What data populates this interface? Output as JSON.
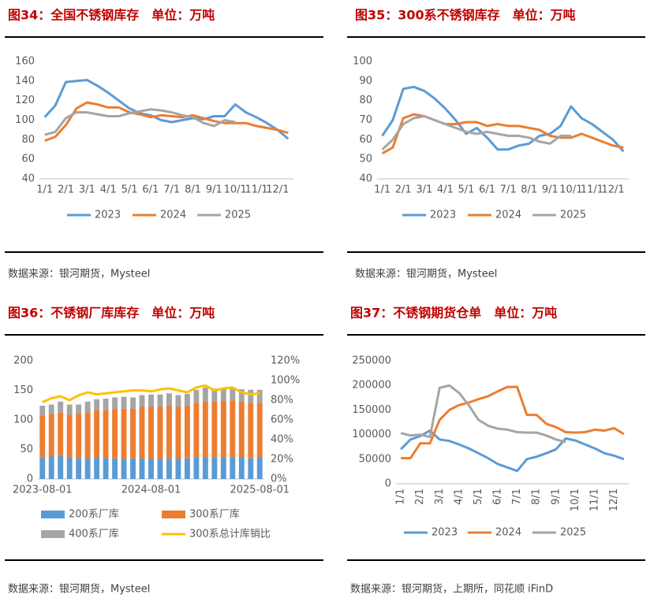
{
  "chart_data": [
    {
      "type": "line",
      "title": "图34：全国不锈钢库存　单位：万吨",
      "source": "数据来源：银河期货，Mysteel",
      "categories": [
        "1/1",
        null,
        "2/1",
        null,
        "3/1",
        null,
        "4/1",
        null,
        "5/1",
        null,
        "6/1",
        null,
        "7/1",
        null,
        "8/1",
        null,
        "9/1",
        null,
        "10/1",
        null,
        "11/1",
        null,
        "12/1",
        null
      ],
      "series": [
        {
          "name": "2023",
          "color": "#5b9bd5",
          "values": [
            103,
            115,
            139,
            140,
            141,
            135,
            128,
            120,
            112,
            107,
            105,
            100,
            98,
            100,
            102,
            101,
            104,
            104,
            116,
            108,
            103,
            97,
            90,
            81
          ]
        },
        {
          "name": "2024",
          "color": "#ed7d31",
          "values": [
            79,
            83,
            95,
            112,
            118,
            116,
            113,
            113,
            108,
            106,
            103,
            105,
            104,
            103,
            105,
            102,
            99,
            97,
            97,
            97,
            94,
            92,
            90,
            87
          ]
        },
        {
          "name": "2025",
          "color": "#a5a5a5",
          "values": [
            85,
            88,
            102,
            108,
            108,
            106,
            104,
            104,
            107,
            109,
            111,
            110,
            108,
            105,
            103,
            97,
            94,
            100,
            98,
            null,
            null,
            null,
            null,
            null
          ]
        }
      ],
      "ylim": [
        40,
        160
      ],
      "yticks": [
        40,
        60,
        80,
        100,
        120,
        140,
        160
      ],
      "legend": "bottom"
    },
    {
      "type": "line",
      "title": "图35：300系不锈钢库存　单位：万吨",
      "source": "数据来源：银河期货，Mysteel",
      "categories": [
        "1/1",
        null,
        "2/1",
        null,
        "3/1",
        null,
        "4/1",
        null,
        "5/1",
        null,
        "6/1",
        null,
        "7/1",
        null,
        "8/1",
        null,
        "9/1",
        null,
        "10/1",
        null,
        "11/1",
        null,
        "12/1",
        null
      ],
      "series": [
        {
          "name": "2023",
          "color": "#5b9bd5",
          "values": [
            62,
            70,
            86,
            87,
            85,
            81,
            76,
            70,
            63,
            66,
            61,
            55,
            55,
            57,
            58,
            62,
            63,
            67,
            77,
            71,
            68,
            64,
            60,
            54
          ]
        },
        {
          "name": "2024",
          "color": "#ed7d31",
          "values": [
            53,
            56,
            71,
            73,
            72,
            70,
            68,
            68,
            69,
            69,
            67,
            68,
            67,
            67,
            66,
            65,
            62,
            61,
            61,
            63,
            61,
            59,
            57,
            56
          ]
        },
        {
          "name": "2025",
          "color": "#a5a5a5",
          "values": [
            55,
            60,
            68,
            71,
            72,
            70,
            68,
            66,
            64,
            63,
            64,
            63,
            62,
            62,
            61,
            59,
            58,
            62,
            62,
            null,
            null,
            null,
            null,
            null
          ]
        }
      ],
      "ylim": [
        40,
        100
      ],
      "yticks": [
        40,
        50,
        60,
        70,
        80,
        90,
        100
      ],
      "legend": "bottom"
    },
    {
      "type": "bar",
      "title": "图36：不锈钢厂库库存　单位：万吨",
      "source": "数据来源：银河期货，Mysteel",
      "stacked": true,
      "categories": [
        "2023-08-01",
        null,
        null,
        null,
        null,
        null,
        null,
        null,
        null,
        null,
        null,
        null,
        "2024-08-01",
        null,
        null,
        null,
        null,
        null,
        null,
        null,
        null,
        null,
        null,
        null,
        "2025-08-01"
      ],
      "series": [
        {
          "name": "200系厂库",
          "color": "#5b9bd5",
          "values": [
            37,
            38,
            39,
            37,
            35,
            35,
            36,
            35,
            35,
            34,
            35,
            35,
            34,
            34,
            35,
            34,
            35,
            37,
            37,
            36,
            36,
            37,
            36,
            35,
            36
          ]
        },
        {
          "name": "300系厂库",
          "color": "#ed7d31",
          "values": [
            70,
            72,
            74,
            72,
            75,
            78,
            80,
            82,
            83,
            85,
            84,
            87,
            88,
            89,
            90,
            88,
            90,
            92,
            94,
            95,
            96,
            96,
            95,
            94,
            93
          ]
        },
        {
          "name": "400系厂库",
          "color": "#a5a5a5",
          "values": [
            17,
            16,
            18,
            17,
            16,
            18,
            19,
            19,
            20,
            20,
            19,
            20,
            21,
            20,
            20,
            20,
            19,
            22,
            24,
            22,
            22,
            20,
            21,
            22,
            22
          ]
        },
        {
          "name": "300系总计库销比",
          "color": "#ffc000",
          "type": "line",
          "axis": "y2",
          "values": [
            78,
            82,
            84,
            80,
            85,
            88,
            86,
            87,
            88,
            89,
            90,
            90,
            89,
            91,
            92,
            90,
            88,
            93,
            95,
            90,
            92,
            93,
            88,
            86,
            87
          ]
        }
      ],
      "ylim": [
        0,
        200
      ],
      "yticks": [
        0,
        50,
        100,
        150,
        200
      ],
      "y2lim": [
        0,
        120
      ],
      "y2ticks": [
        {
          "value": 0,
          "label": "0%"
        },
        {
          "value": 20,
          "label": "20%"
        },
        {
          "value": 40,
          "label": "40%"
        },
        {
          "value": 60,
          "label": "60%"
        },
        {
          "value": 80,
          "label": "80%"
        },
        {
          "value": 100,
          "label": "100%"
        },
        {
          "value": 120,
          "label": "120%"
        }
      ],
      "legend": "bottom"
    },
    {
      "type": "line",
      "title": "图37：不锈钢期货仓单　单位：万吨",
      "source": "数据来源：银河期货，上期所，同花顺 iFinD",
      "categories": [
        "1/1",
        null,
        "2/1",
        null,
        "3/1",
        null,
        "4/1",
        null,
        "5/1",
        null,
        "6/1",
        null,
        "7/1",
        null,
        "8/1",
        null,
        "9/1",
        null,
        "10/1",
        null,
        "11/1",
        null,
        "12/1",
        null
      ],
      "series": [
        {
          "name": "2023",
          "color": "#5b9bd5",
          "values": [
            70000,
            90000,
            97000,
            108000,
            90000,
            87000,
            80000,
            72000,
            62000,
            52000,
            40000,
            33000,
            26000,
            50000,
            55000,
            62000,
            70000,
            92000,
            88000,
            80000,
            72000,
            62000,
            57000,
            50000
          ]
        },
        {
          "name": "2024",
          "color": "#ed7d31",
          "values": [
            52000,
            52000,
            82000,
            82000,
            130000,
            150000,
            160000,
            165000,
            172000,
            178000,
            188000,
            197000,
            197000,
            140000,
            140000,
            122000,
            115000,
            105000,
            104000,
            105000,
            110000,
            108000,
            113000,
            101000
          ]
        },
        {
          "name": "2025",
          "color": "#a5a5a5",
          "values": [
            103000,
            98000,
            100000,
            95000,
            195000,
            200000,
            185000,
            160000,
            130000,
            118000,
            112000,
            110000,
            105000,
            104000,
            104000,
            98000,
            90000,
            85000,
            null,
            null,
            null,
            null,
            null,
            null
          ]
        }
      ],
      "ylim": [
        0,
        250000
      ],
      "yticks": [
        0,
        50000,
        100000,
        150000,
        200000,
        250000
      ],
      "rotate_x_labels": true,
      "legend": "bottom"
    }
  ]
}
